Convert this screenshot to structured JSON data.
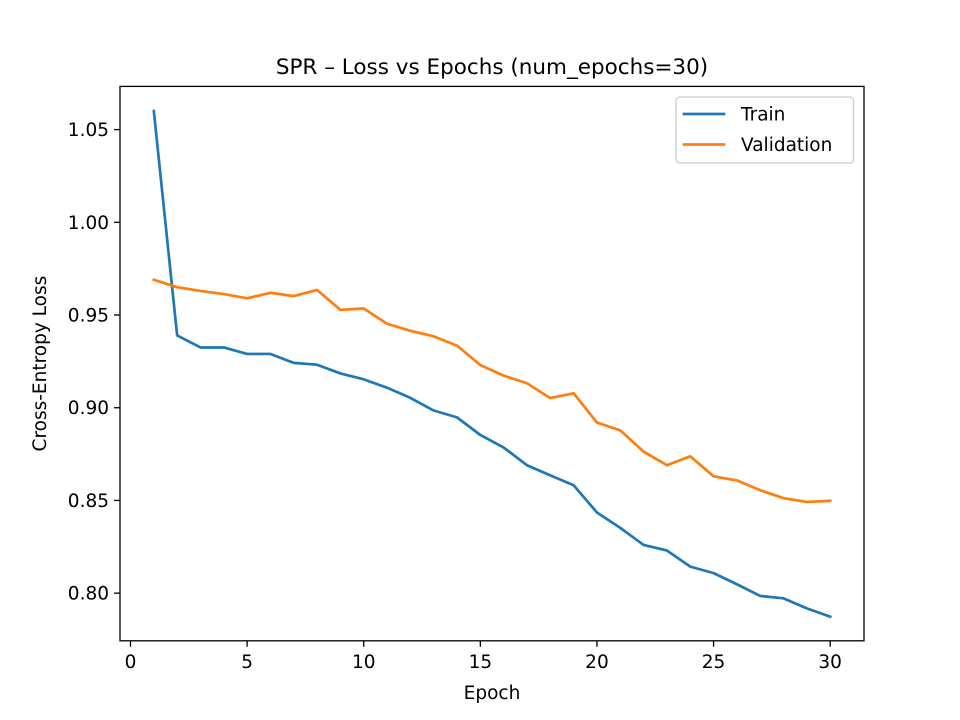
{
  "chart_data": {
    "type": "line",
    "title": "SPR – Loss vs Epochs (num_epochs=30)",
    "xlabel": "Epoch",
    "ylabel": "Cross-Entropy Loss",
    "xlim": [
      -0.45,
      31.45
    ],
    "ylim": [
      0.7743,
      1.0733
    ],
    "xticks": [
      0,
      5,
      10,
      15,
      20,
      25,
      30
    ],
    "xtick_labels": [
      "0",
      "5",
      "10",
      "15",
      "20",
      "25",
      "30"
    ],
    "yticks": [
      0.8,
      0.85,
      0.9,
      0.95,
      1.0,
      1.05
    ],
    "ytick_labels": [
      "0.80",
      "0.85",
      "0.90",
      "0.95",
      "1.00",
      "1.05"
    ],
    "grid": false,
    "legend_position": "top-right",
    "x": [
      1,
      2,
      3,
      4,
      5,
      6,
      7,
      8,
      9,
      10,
      11,
      12,
      13,
      14,
      15,
      16,
      17,
      18,
      19,
      20,
      21,
      22,
      23,
      24,
      25,
      26,
      27,
      28,
      29,
      30
    ],
    "series": [
      {
        "name": "Train",
        "color": "#1f77b4",
        "values": [
          1.06,
          0.939,
          0.9325,
          0.9325,
          0.929,
          0.929,
          0.9242,
          0.9232,
          0.9185,
          0.9153,
          0.9108,
          0.9053,
          0.8985,
          0.8948,
          0.8853,
          0.8785,
          0.869,
          0.8635,
          0.8582,
          0.8435,
          0.8352,
          0.826,
          0.823,
          0.8143,
          0.8108,
          0.8048,
          0.7985,
          0.7972,
          0.7918,
          0.7873
        ]
      },
      {
        "name": "Validation",
        "color": "#ff7f0e",
        "values": [
          0.969,
          0.965,
          0.963,
          0.9613,
          0.959,
          0.962,
          0.9602,
          0.9635,
          0.9528,
          0.9535,
          0.9453,
          0.9415,
          0.9385,
          0.9335,
          0.923,
          0.9173,
          0.9132,
          0.9052,
          0.9078,
          0.892,
          0.8878,
          0.8763,
          0.869,
          0.8738,
          0.863,
          0.8608,
          0.8555,
          0.8512,
          0.8492,
          0.8498
        ]
      }
    ]
  }
}
